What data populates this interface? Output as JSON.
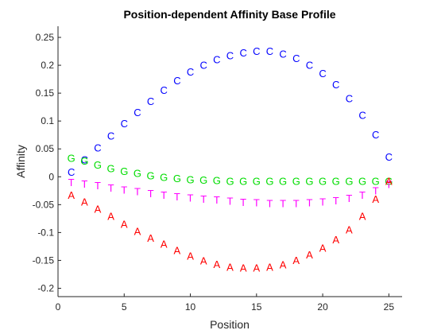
{
  "chart_data": {
    "type": "scatter",
    "title": "Position-dependent Affinity Base Profile",
    "xlabel": "Position",
    "ylabel": "Affinity",
    "xlim": [
      0,
      26
    ],
    "ylim": [
      -0.215,
      0.27
    ],
    "xticks": [
      "0",
      "5",
      "10",
      "15",
      "20",
      "25"
    ],
    "yticks": [
      "-0.2",
      "-0.15",
      "-0.1",
      "-0.05",
      "0",
      "0.05",
      "0.1",
      "0.15",
      "0.2",
      "0.25"
    ],
    "grid": false,
    "legend": "none",
    "x": [
      1,
      2,
      3,
      4,
      5,
      6,
      7,
      8,
      9,
      10,
      11,
      12,
      13,
      14,
      15,
      16,
      17,
      18,
      19,
      20,
      21,
      22,
      23,
      24,
      25
    ],
    "series": [
      {
        "marker": "C",
        "color": "#0000ff",
        "values": [
          0.008,
          0.03,
          0.052,
          0.073,
          0.095,
          0.115,
          0.135,
          0.155,
          0.172,
          0.188,
          0.2,
          0.21,
          0.217,
          0.222,
          0.225,
          0.225,
          0.22,
          0.212,
          0.2,
          0.185,
          0.165,
          0.14,
          0.11,
          0.075,
          0.035
        ]
      },
      {
        "marker": "G",
        "color": "#00dd00",
        "values": [
          0.033,
          0.028,
          0.021,
          0.015,
          0.01,
          0.006,
          0.002,
          -0.001,
          -0.003,
          -0.005,
          -0.006,
          -0.007,
          -0.008,
          -0.008,
          -0.008,
          -0.008,
          -0.008,
          -0.008,
          -0.008,
          -0.008,
          -0.008,
          -0.008,
          -0.008,
          -0.008,
          -0.008
        ]
      },
      {
        "marker": "T",
        "color": "#ff00ff",
        "values": [
          -0.01,
          -0.013,
          -0.016,
          -0.02,
          -0.024,
          -0.027,
          -0.03,
          -0.033,
          -0.036,
          -0.038,
          -0.04,
          -0.042,
          -0.044,
          -0.046,
          -0.047,
          -0.048,
          -0.048,
          -0.048,
          -0.047,
          -0.045,
          -0.043,
          -0.039,
          -0.033,
          -0.025,
          -0.014
        ]
      },
      {
        "marker": "A",
        "color": "#ff0000",
        "values": [
          -0.033,
          -0.045,
          -0.058,
          -0.071,
          -0.085,
          -0.098,
          -0.11,
          -0.121,
          -0.132,
          -0.142,
          -0.151,
          -0.157,
          -0.162,
          -0.164,
          -0.164,
          -0.162,
          -0.158,
          -0.15,
          -0.14,
          -0.128,
          -0.113,
          -0.095,
          -0.071,
          -0.04,
          -0.008
        ]
      }
    ]
  }
}
